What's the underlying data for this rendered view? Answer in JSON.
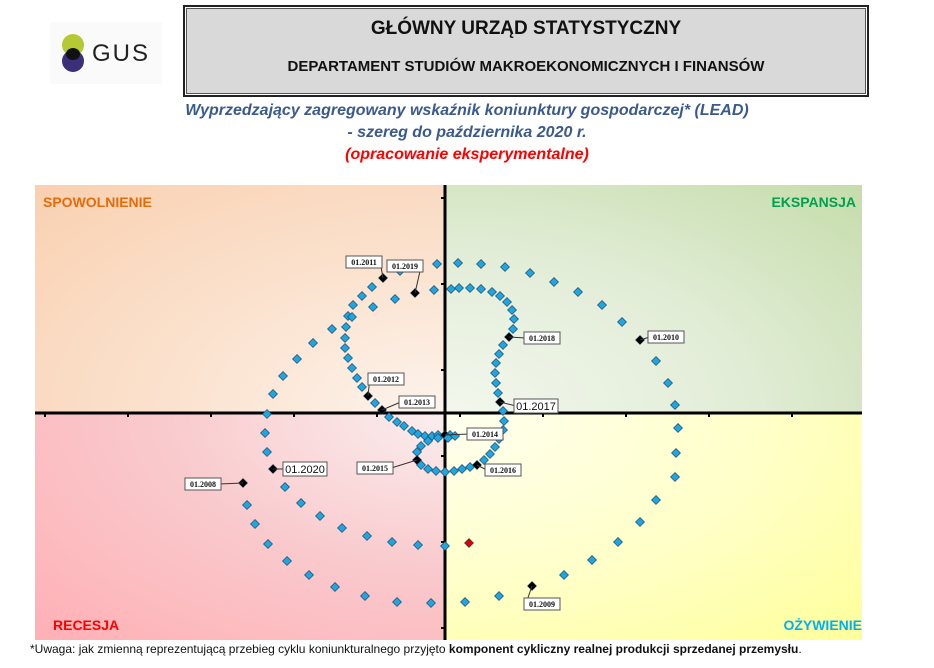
{
  "header": {
    "logo_text": "GUS",
    "org_name": "GŁÓWNY URZĄD STATYSTYCZNY",
    "department": "DEPARTAMENT STUDIÓW MAKROEKONOMICZNYCH I FINANSÓW"
  },
  "footnote": {
    "prefix": "*Uwaga: jak zmienną reprezentującą przebieg cyklu koniunkturalnego przyjęto ",
    "bold": "komponent cykliczny realnej produkcji sprzedanej przemysłu",
    "suffix": "."
  },
  "colors": {
    "point": "#1fa6e0",
    "marked": "#000000",
    "last": "#e00000",
    "title": "#3b5a8c",
    "subtitle_red": "#ff0000"
  },
  "chart_data": {
    "type": "scatter",
    "title": "Wyprzedzający zagregowany wskaźnik koniunktury gospodarczej* (LEAD)",
    "subtitle": "- szereg do października 2020 r.",
    "note": "(opracowanie eksperymentalne)",
    "xlabel": "",
    "ylabel": "",
    "xlim": [
      -41,
      41.7
    ],
    "ylim": [
      -22.7,
      22.8
    ],
    "grid": false,
    "quadrants": {
      "top_left": "SPOWOLNIENIE",
      "top_right": "EKSPANSJA",
      "bottom_left": "RECESJA",
      "bottom_right": "OŻYWIENIE"
    },
    "points": [
      [
        -20.2,
        -7.0,
        "01.2008"
      ],
      [
        -19.8,
        -9.2
      ],
      [
        -19.0,
        -11.1
      ],
      [
        -17.7,
        -13.1
      ],
      [
        -15.8,
        -14.8
      ],
      [
        -13.6,
        -16.2
      ],
      [
        -11.0,
        -17.4
      ],
      [
        -8.0,
        -18.3
      ],
      [
        -4.8,
        -18.9
      ],
      [
        -1.4,
        -19.0
      ],
      [
        2.0,
        -18.9
      ],
      [
        5.4,
        -18.3
      ],
      [
        8.7,
        -17.3,
        "01.2009"
      ],
      [
        11.9,
        -16.2
      ],
      [
        14.7,
        -14.7
      ],
      [
        17.3,
        -12.9
      ],
      [
        19.5,
        -10.9
      ],
      [
        21.1,
        -8.7
      ],
      [
        23.0,
        -6.4
      ],
      [
        23.1,
        -4.0
      ],
      [
        23.3,
        -1.5
      ],
      [
        23.0,
        0.8
      ],
      [
        22.3,
        3.0
      ],
      [
        21.1,
        5.2
      ],
      [
        19.5,
        7.3,
        "01.2010"
      ],
      [
        17.7,
        9.1
      ],
      [
        15.7,
        10.8
      ],
      [
        13.3,
        12.1
      ],
      [
        10.9,
        13.1
      ],
      [
        8.5,
        14.0
      ],
      [
        6.0,
        14.6
      ],
      [
        3.6,
        14.9
      ],
      [
        1.3,
        15.0
      ],
      [
        -0.8,
        14.9
      ],
      [
        -2.7,
        14.6
      ],
      [
        -4.5,
        14.2
      ],
      [
        -6.2,
        13.5,
        "01.2011"
      ],
      [
        -7.3,
        12.6
      ],
      [
        -8.3,
        11.7
      ],
      [
        -9.2,
        10.8
      ],
      [
        -9.7,
        9.7
      ],
      [
        -9.9,
        8.6
      ],
      [
        -10.0,
        7.5
      ],
      [
        -10.0,
        6.5
      ],
      [
        -9.7,
        5.5
      ],
      [
        -9.3,
        4.5
      ],
      [
        -8.8,
        3.5
      ],
      [
        -8.3,
        2.6
      ],
      [
        -7.7,
        1.7,
        "01.2012"
      ],
      [
        -7.0,
        1.0
      ],
      [
        -6.3,
        0.3,
        "01.2013"
      ],
      [
        -5.6,
        -0.4
      ],
      [
        -4.8,
        -0.9
      ],
      [
        -4.1,
        -1.3
      ],
      [
        -3.3,
        -1.8
      ],
      [
        -2.7,
        -2.1
      ],
      [
        -2.0,
        -2.3
      ],
      [
        -1.3,
        -2.3
      ],
      [
        -0.7,
        -2.2
      ],
      [
        0.0,
        -2.2,
        "01.2014"
      ],
      [
        0.5,
        -2.2
      ],
      [
        1.0,
        -2.3
      ],
      [
        0.3,
        -2.5
      ],
      [
        -0.7,
        -2.5
      ],
      [
        -1.7,
        -2.8
      ],
      [
        -2.4,
        -3.3
      ],
      [
        -2.8,
        -3.9
      ],
      [
        -2.8,
        -4.7,
        "01.2015"
      ],
      [
        -2.4,
        -5.2
      ],
      [
        -1.7,
        -5.6
      ],
      [
        -0.9,
        -5.8
      ],
      [
        0.0,
        -5.9
      ],
      [
        0.9,
        -5.8
      ],
      [
        1.7,
        -5.6
      ],
      [
        2.5,
        -5.4
      ],
      [
        3.2,
        -5.2,
        "01.2016"
      ],
      [
        3.9,
        -4.7
      ],
      [
        4.5,
        -4.1
      ],
      [
        5.0,
        -3.4
      ],
      [
        5.4,
        -2.6
      ],
      [
        5.8,
        -1.7
      ],
      [
        5.9,
        -0.8
      ],
      [
        5.8,
        0.2
      ],
      [
        5.5,
        1.1,
        "01.2017"
      ],
      [
        5.3,
        2.0
      ],
      [
        5.1,
        3.0
      ],
      [
        5.0,
        4.0
      ],
      [
        5.1,
        5.0
      ],
      [
        5.4,
        5.9
      ],
      [
        5.8,
        6.8
      ],
      [
        6.4,
        7.6,
        "01.2018"
      ],
      [
        6.8,
        8.4
      ],
      [
        6.9,
        9.4
      ],
      [
        6.7,
        10.3
      ],
      [
        6.2,
        11.1
      ],
      [
        5.5,
        11.7
      ],
      [
        4.7,
        12.1
      ],
      [
        3.6,
        12.4
      ],
      [
        2.5,
        12.5
      ],
      [
        1.4,
        12.5
      ],
      [
        0.6,
        12.4
      ],
      [
        -1.1,
        12.3
      ],
      [
        -3.0,
        12.0,
        "01.2019"
      ],
      [
        -5.0,
        11.4
      ],
      [
        -7.2,
        10.6
      ],
      [
        -9.3,
        9.6
      ],
      [
        -11.3,
        8.4
      ],
      [
        -13.2,
        7.0
      ],
      [
        -14.8,
        5.4
      ],
      [
        -16.2,
        3.7
      ],
      [
        -17.2,
        1.9
      ],
      [
        -17.8,
        -0.1
      ],
      [
        -18.0,
        -2.0
      ],
      [
        -17.8,
        -3.9
      ],
      [
        -17.2,
        -5.6,
        "01.2020"
      ],
      [
        -16.0,
        -7.4
      ],
      [
        -14.4,
        -9.0
      ],
      [
        -12.5,
        -10.3
      ],
      [
        -10.3,
        -11.5
      ],
      [
        -7.8,
        -12.3
      ],
      [
        -5.3,
        -12.9
      ],
      [
        -2.7,
        -13.2
      ],
      [
        0.0,
        -13.3
      ],
      [
        2.4,
        -13.0
      ]
    ]
  }
}
